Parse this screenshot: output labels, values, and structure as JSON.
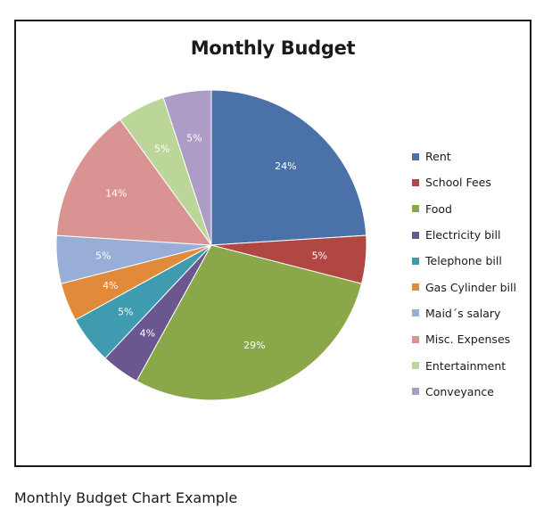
{
  "caption": "Monthly Budget Chart Example",
  "chart_data": {
    "type": "pie",
    "title": "Monthly Budget",
    "legend_position": "right",
    "slices": [
      {
        "name": "Rent",
        "value": 24,
        "label": "24%",
        "color": "#4a72a8"
      },
      {
        "name": "School Fees",
        "value": 5,
        "label": "5%",
        "color": "#b04743"
      },
      {
        "name": "Food",
        "value": 29,
        "label": "29%",
        "color": "#8aa84a"
      },
      {
        "name": "Electricity bill",
        "value": 4,
        "label": "4%",
        "color": "#6b5790"
      },
      {
        "name": "Telephone bill",
        "value": 5,
        "label": "5%",
        "color": "#3f9bb0"
      },
      {
        "name": "Gas Cylinder bill",
        "value": 4,
        "label": "4%",
        "color": "#e08a3a"
      },
      {
        "name": "Maid´s salary",
        "value": 5,
        "label": "5%",
        "color": "#98aed6"
      },
      {
        "name": "Misc. Expenses",
        "value": 14,
        "label": "14%",
        "color": "#d89392"
      },
      {
        "name": "Entertainment",
        "value": 5,
        "label": "5%",
        "color": "#bcd69a"
      },
      {
        "name": "Conveyance",
        "value": 5,
        "label": "5%",
        "color": "#ad9cc6"
      }
    ]
  }
}
